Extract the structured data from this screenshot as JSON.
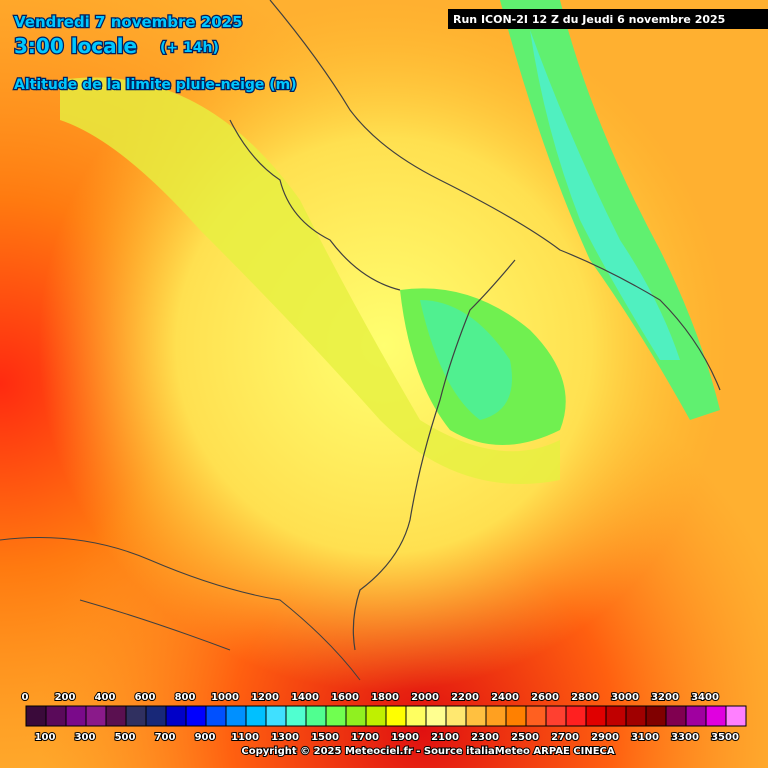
{
  "header": {
    "date": "Vendredi 7 novembre 2025",
    "time": "3:00 locale",
    "lead": "(+ 14h)",
    "parameter": "Altitude de la limite pluie-neige (m)",
    "run": "Run ICON-2I 12 Z du Jeudi 6 novembre 2025"
  },
  "legend": {
    "upper_labels": [
      0,
      200,
      400,
      600,
      800,
      1000,
      1200,
      1400,
      1600,
      1800,
      2000,
      2200,
      2400,
      2600,
      2800,
      3000,
      3200,
      3400
    ],
    "lower_labels": [
      100,
      300,
      500,
      700,
      900,
      1100,
      1300,
      1500,
      1700,
      1900,
      2100,
      2300,
      2500,
      2700,
      2900,
      3100,
      3300,
      3500
    ],
    "colors": [
      "#3a0a3a",
      "#5a0a5a",
      "#7a0a8a",
      "#8a1a8a",
      "#5a1050",
      "#303060",
      "#182878",
      "#0000c8",
      "#0000ff",
      "#0050ff",
      "#0090ff",
      "#00c0ff",
      "#40e0ff",
      "#50ffd0",
      "#50ff90",
      "#70ff50",
      "#90f020",
      "#c0f000",
      "#ffff00",
      "#ffff60",
      "#ffff90",
      "#ffe870",
      "#ffc040",
      "#ffa020",
      "#ff8000",
      "#ff6020",
      "#ff4030",
      "#ff2020",
      "#e00000",
      "#c00000",
      "#a00000",
      "#800000",
      "#800050",
      "#a000a0",
      "#e000e0",
      "#ff80ff"
    ]
  },
  "footer": {
    "copyright": "Copyright © 2025 Meteociel.fr - Source italiaMeteo ARPAE CINECA"
  }
}
